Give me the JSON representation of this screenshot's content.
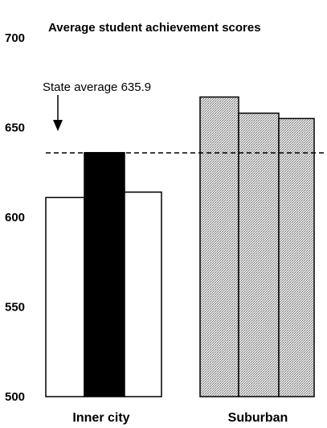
{
  "chart_data": {
    "type": "bar",
    "title": "Average student achievement scores",
    "ylim": [
      500,
      700
    ],
    "yticks": [
      500,
      550,
      600,
      650,
      700
    ],
    "groups": [
      {
        "label": "Inner city",
        "values": [
          611,
          636,
          614
        ],
        "fills": [
          "white",
          "black",
          "white"
        ]
      },
      {
        "label": "Suburban",
        "values": [
          667,
          658,
          655
        ],
        "fills": [
          "stipple",
          "stipple",
          "stipple"
        ]
      }
    ],
    "reference_line": {
      "label": "State average 635.9",
      "value": 635.9,
      "style": "dashed"
    },
    "grid": false
  },
  "colors": {
    "text": "#000000",
    "stipple_light": "#e4e4e4",
    "stipple_dark": "#7d7d7d",
    "dark_bar": "#000000"
  }
}
